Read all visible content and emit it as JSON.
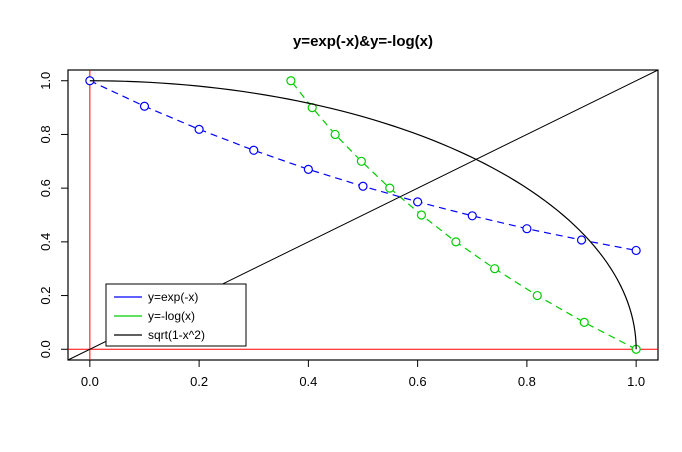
{
  "chart_data": {
    "type": "line",
    "title": "y=exp(-x)&y=-log(x)",
    "xlabel": "",
    "ylabel": "",
    "xlim": [
      0,
      1
    ],
    "ylim": [
      0,
      1
    ],
    "grid": false,
    "x_ticks": [
      "0.0",
      "0.2",
      "0.4",
      "0.6",
      "0.8",
      "1.0"
    ],
    "y_ticks": [
      "0.0",
      "0.2",
      "0.4",
      "0.6",
      "0.8",
      "1.0"
    ],
    "series": [
      {
        "name": "y=exp(-x)",
        "color": "#0000ff",
        "line": "dashed",
        "marker": "circle",
        "x": [
          0,
          0.1,
          0.2,
          0.3,
          0.4,
          0.5,
          0.6,
          0.7,
          0.8,
          0.9,
          1.0
        ],
        "y": [
          1.0,
          0.905,
          0.819,
          0.741,
          0.67,
          0.607,
          0.549,
          0.497,
          0.449,
          0.407,
          0.368
        ]
      },
      {
        "name": "y=-log(x)",
        "color": "#00cd00",
        "line": "dashed",
        "marker": "circle",
        "x": [
          1.0,
          0.905,
          0.819,
          0.741,
          0.67,
          0.607,
          0.549,
          0.497,
          0.449,
          0.407,
          0.368
        ],
        "y": [
          0,
          0.1,
          0.2,
          0.3,
          0.4,
          0.5,
          0.6,
          0.7,
          0.8,
          0.9,
          1.0
        ]
      },
      {
        "name": "sqrt(1-x^2)",
        "color": "#000000",
        "line": "solid",
        "curve": "unit-quarter-circle"
      },
      {
        "name": "y=x",
        "color": "#000000",
        "line": "solid",
        "curve": "identity-line"
      }
    ],
    "reference_lines": [
      {
        "type": "h",
        "value": 0,
        "color": "#ff0000"
      },
      {
        "type": "v",
        "value": 0,
        "color": "#ff0000"
      }
    ],
    "legend": {
      "position": "bottom-left",
      "entries": [
        {
          "label": "y=exp(-x)",
          "color": "#0000ff"
        },
        {
          "label": "y=-log(x)",
          "color": "#00cd00"
        },
        {
          "label": "sqrt(1-x^2)",
          "color": "#000000"
        }
      ]
    }
  },
  "colors": {
    "axis": "#000000",
    "background": "#ffffff",
    "exp_series": "#0000ff",
    "log_series": "#00cd00",
    "sqrt_curve": "#000000",
    "reference": "#ff0000"
  }
}
